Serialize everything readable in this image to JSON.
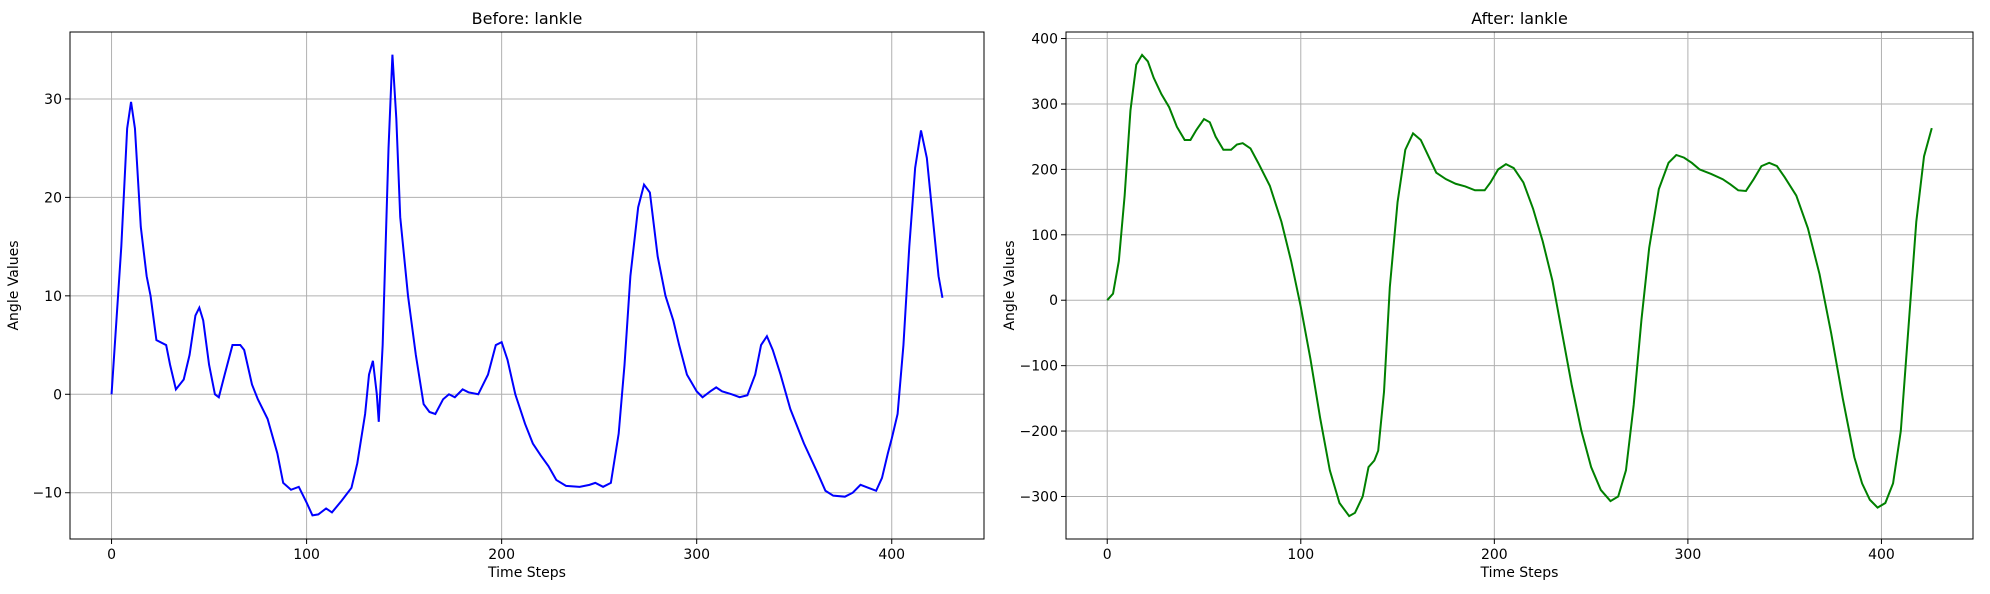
{
  "chart_data": [
    {
      "type": "line",
      "title": "Before: lankle",
      "xlabel": "Time Steps",
      "ylabel": "Angle Values",
      "grid": true,
      "xlim": [
        -21.3,
        447.3
      ],
      "ylim": [
        -14.7,
        36.8
      ],
      "xticks": [
        0,
        100,
        200,
        300,
        400
      ],
      "yticks": [
        {
          "value": -10,
          "label": "−10"
        },
        0,
        10,
        20,
        30
      ],
      "x": [
        0,
        5,
        8,
        10,
        12,
        15,
        18,
        20,
        23,
        28,
        30,
        33,
        37,
        40,
        43,
        45,
        47,
        50,
        53,
        55,
        58,
        62,
        66,
        68,
        72,
        75,
        80,
        85,
        88,
        92,
        96,
        100,
        103,
        106,
        110,
        113,
        118,
        123,
        126,
        130,
        132,
        134,
        136,
        137,
        139,
        142,
        144,
        146,
        148,
        152,
        156,
        160,
        163,
        166,
        170,
        173,
        176,
        180,
        183,
        188,
        193,
        197,
        200,
        203,
        207,
        212,
        216,
        220,
        224,
        228,
        233,
        240,
        245,
        248,
        252,
        256,
        260,
        263,
        266,
        270,
        273,
        276,
        280,
        284,
        288,
        291,
        295,
        300,
        303,
        307,
        310,
        313,
        318,
        322,
        326,
        330,
        333,
        336,
        339,
        343,
        348,
        355,
        362,
        366,
        370,
        376,
        380,
        384,
        388,
        392,
        395,
        398,
        400,
        403,
        406,
        409,
        412,
        415,
        418,
        421,
        424,
        426
      ],
      "series": [
        {
          "color": "#0000ff",
          "values": [
            0,
            15,
            27,
            29.7,
            27,
            17,
            12,
            10,
            5.5,
            5,
            3,
            0.5,
            1.5,
            4,
            8,
            8.8,
            7.5,
            3,
            0,
            -0.3,
            2,
            5,
            5,
            4.5,
            1,
            -0.5,
            -2.5,
            -6,
            -9,
            -9.7,
            -9.4,
            -11,
            -12.3,
            -12.2,
            -11.6,
            -12,
            -10.8,
            -9.5,
            -7,
            -2,
            2,
            3.4,
            0,
            -2.8,
            5,
            25,
            34.5,
            28,
            18,
            10,
            4,
            -1,
            -1.8,
            -2,
            -0.5,
            0,
            -0.3,
            0.5,
            0.2,
            0,
            2,
            5,
            5.3,
            3.5,
            0,
            -3,
            -5,
            -6.2,
            -7.3,
            -8.7,
            -9.3,
            -9.4,
            -9.2,
            -9,
            -9.4,
            -9,
            -4,
            3,
            12,
            19,
            21.3,
            20.5,
            14,
            10,
            7.5,
            5,
            2,
            0.3,
            -0.3,
            0.3,
            0.7,
            0.3,
            0,
            -0.3,
            -0.1,
            2,
            5,
            5.9,
            4.5,
            2,
            -1.5,
            -5,
            -8,
            -9.8,
            -10.3,
            -10.4,
            -10,
            -9.2,
            -9.5,
            -9.8,
            -8.5,
            -6,
            -4.5,
            -2,
            5,
            15,
            23,
            26.8,
            24,
            18,
            12,
            9.8
          ]
        }
      ]
    },
    {
      "type": "line",
      "title": "After: lankle",
      "xlabel": "Time Steps",
      "ylabel": "Angle Values",
      "grid": true,
      "xlim": [
        -21.3,
        447.3
      ],
      "ylim": [
        -365,
        410
      ],
      "xticks": [
        0,
        100,
        200,
        300,
        400
      ],
      "yticks": [
        {
          "value": -300,
          "label": "−300"
        },
        {
          "value": -200,
          "label": "−200"
        },
        {
          "value": -100,
          "label": "−100"
        },
        0,
        100,
        200,
        300,
        400
      ],
      "x": [
        0,
        3,
        6,
        9,
        12,
        15,
        18,
        21,
        24,
        28,
        32,
        36,
        40,
        43,
        46,
        50,
        53,
        56,
        60,
        64,
        67,
        70,
        74,
        78,
        84,
        90,
        95,
        100,
        105,
        110,
        115,
        120,
        125,
        128,
        132,
        135,
        138,
        140,
        143,
        146,
        150,
        154,
        158,
        162,
        166,
        170,
        175,
        180,
        185,
        190,
        195,
        198,
        202,
        206,
        210,
        215,
        220,
        225,
        230,
        235,
        240,
        245,
        250,
        255,
        260,
        264,
        268,
        272,
        276,
        280,
        285,
        290,
        294,
        298,
        302,
        306,
        312,
        318,
        322,
        326,
        330,
        334,
        338,
        342,
        346,
        350,
        356,
        362,
        368,
        374,
        380,
        386,
        390,
        394,
        398,
        402,
        406,
        410,
        414,
        418,
        422,
        426
      ],
      "series": [
        {
          "color": "#008000",
          "values": [
            0,
            10,
            60,
            160,
            290,
            360,
            375,
            365,
            340,
            315,
            295,
            265,
            245,
            245,
            260,
            277,
            272,
            250,
            230,
            230,
            238,
            240,
            232,
            210,
            175,
            120,
            60,
            -10,
            -90,
            -180,
            -260,
            -310,
            -330,
            -325,
            -300,
            -255,
            -245,
            -230,
            -140,
            20,
            150,
            230,
            255,
            245,
            220,
            195,
            185,
            178,
            174,
            168,
            168,
            180,
            200,
            208,
            202,
            180,
            140,
            90,
            30,
            -50,
            -130,
            -200,
            -255,
            -290,
            -307,
            -300,
            -260,
            -160,
            -30,
            80,
            170,
            210,
            222,
            218,
            210,
            200,
            193,
            185,
            177,
            168,
            167,
            185,
            205,
            210,
            205,
            188,
            160,
            110,
            40,
            -50,
            -150,
            -240,
            -280,
            -305,
            -317,
            -310,
            -280,
            -200,
            -40,
            120,
            220,
            263
          ]
        }
      ]
    }
  ]
}
